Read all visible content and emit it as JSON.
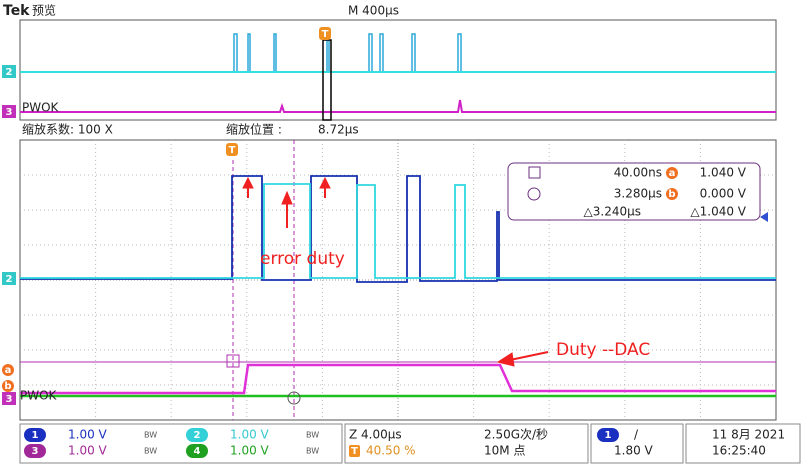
{
  "header": {
    "brand": "Tek",
    "mode": "预览",
    "timebase": "M 400µs"
  },
  "overview": {
    "ch2": "2",
    "ch3": "3",
    "ch3_label": "PWOK",
    "trigger": "T"
  },
  "zoom": {
    "factor": "缩放系数: 100 X",
    "position_label": "缩放位置 :",
    "position": "8.72µs"
  },
  "main": {
    "trigger": "T",
    "ch2": "2",
    "ch3": "3",
    "ch3_label": "PWOK",
    "cursor_a": "a",
    "cursor_b": "b",
    "annotations": [
      "error duty",
      "Duty --DAC"
    ]
  },
  "cursor_readout": {
    "a_time": "40.00ns",
    "a_label": "a",
    "a_volt": "1.040 V",
    "b_time": "3.280µs",
    "b_label": "b",
    "b_volt": "0.000 V",
    "delta_time": "△3.240µs",
    "delta_volt": "△1.040 V"
  },
  "status": {
    "channels": [
      {
        "id": "1",
        "scale": "1.00 V",
        "bw": "BW"
      },
      {
        "id": "2",
        "scale": "1.00 V",
        "bw": "BW"
      },
      {
        "id": "3",
        "scale": "1.00 V",
        "bw": "BW"
      },
      {
        "id": "4",
        "scale": "1.00 V",
        "bw": "BW"
      }
    ],
    "zoom": "Z 4.00µs",
    "trigger_pos_icon": "T",
    "trigger_pos": "40.50 %",
    "sample_rate": "2.50G次/秒",
    "record_length": "10M 点",
    "trigger_source": "1",
    "trigger_slope": "/",
    "trigger_level": "1.80 V",
    "date": "11 8月 2021",
    "time": "16:25:40"
  }
}
